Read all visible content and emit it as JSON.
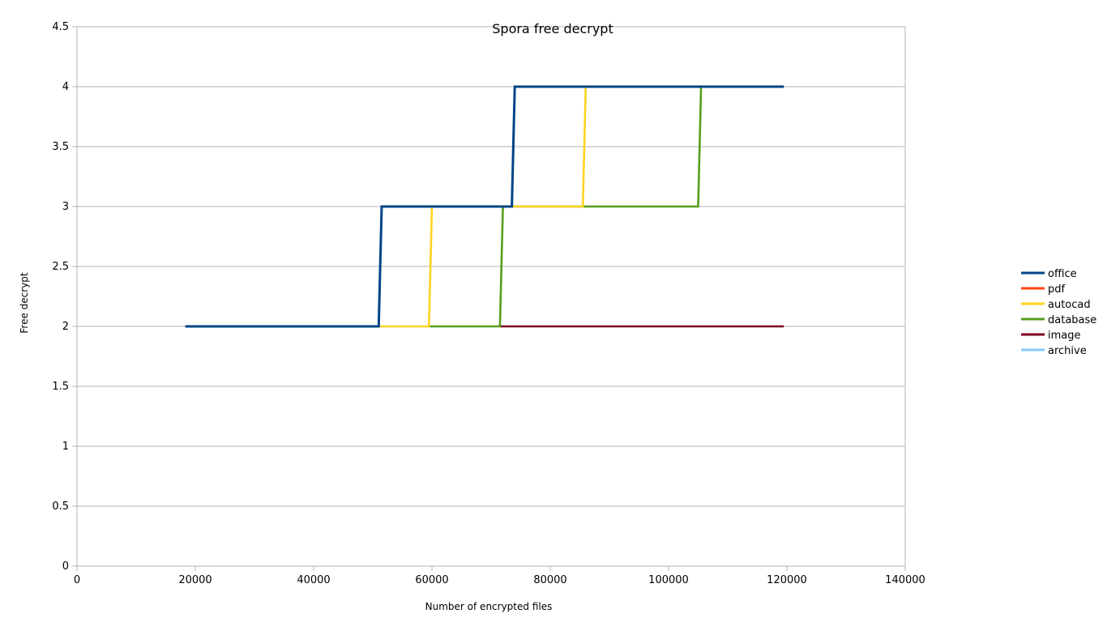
{
  "chart_data": {
    "type": "line",
    "title": "Spora free decrypt",
    "xlabel": "Number of encrypted files",
    "ylabel": "Free decrypt",
    "xlim": [
      0,
      140000
    ],
    "ylim": [
      0,
      4.5
    ],
    "x_ticks": [
      0,
      20000,
      40000,
      60000,
      80000,
      100000,
      120000,
      140000
    ],
    "y_ticks": [
      0,
      0.5,
      1,
      1.5,
      2,
      2.5,
      3,
      3.5,
      4,
      4.5
    ],
    "x_tick_labels": [
      "0",
      "20000",
      "40000",
      "60000",
      "80000",
      "100000",
      "120000",
      "140000"
    ],
    "y_tick_labels": [
      "0",
      "0.5",
      "1",
      "1.5",
      "2",
      "2.5",
      "3",
      "3.5",
      "4",
      "4.5"
    ],
    "grid": "horizontal",
    "legend_position": "right",
    "series": [
      {
        "name": "office",
        "color": "#004586",
        "points": [
          [
            18300,
            2
          ],
          [
            51000,
            2
          ],
          [
            51500,
            3
          ],
          [
            73500,
            3
          ],
          [
            74000,
            4
          ],
          [
            119500,
            4
          ]
        ]
      },
      {
        "name": "pdf",
        "color": "#ff420e",
        "points": []
      },
      {
        "name": "autocad",
        "color": "#ffd320",
        "points": [
          [
            51000,
            2
          ],
          [
            59500,
            2
          ],
          [
            60000,
            3
          ],
          [
            85500,
            3
          ],
          [
            86000,
            4
          ]
        ]
      },
      {
        "name": "database",
        "color": "#579d1c",
        "points": [
          [
            59500,
            2
          ],
          [
            71500,
            2
          ],
          [
            72000,
            3
          ],
          [
            105000,
            3
          ],
          [
            105500,
            4
          ]
        ]
      },
      {
        "name": "image",
        "color": "#7e0021",
        "points": [
          [
            71500,
            2
          ],
          [
            119500,
            2
          ]
        ]
      },
      {
        "name": "archive",
        "color": "#83caff",
        "points": []
      }
    ]
  }
}
